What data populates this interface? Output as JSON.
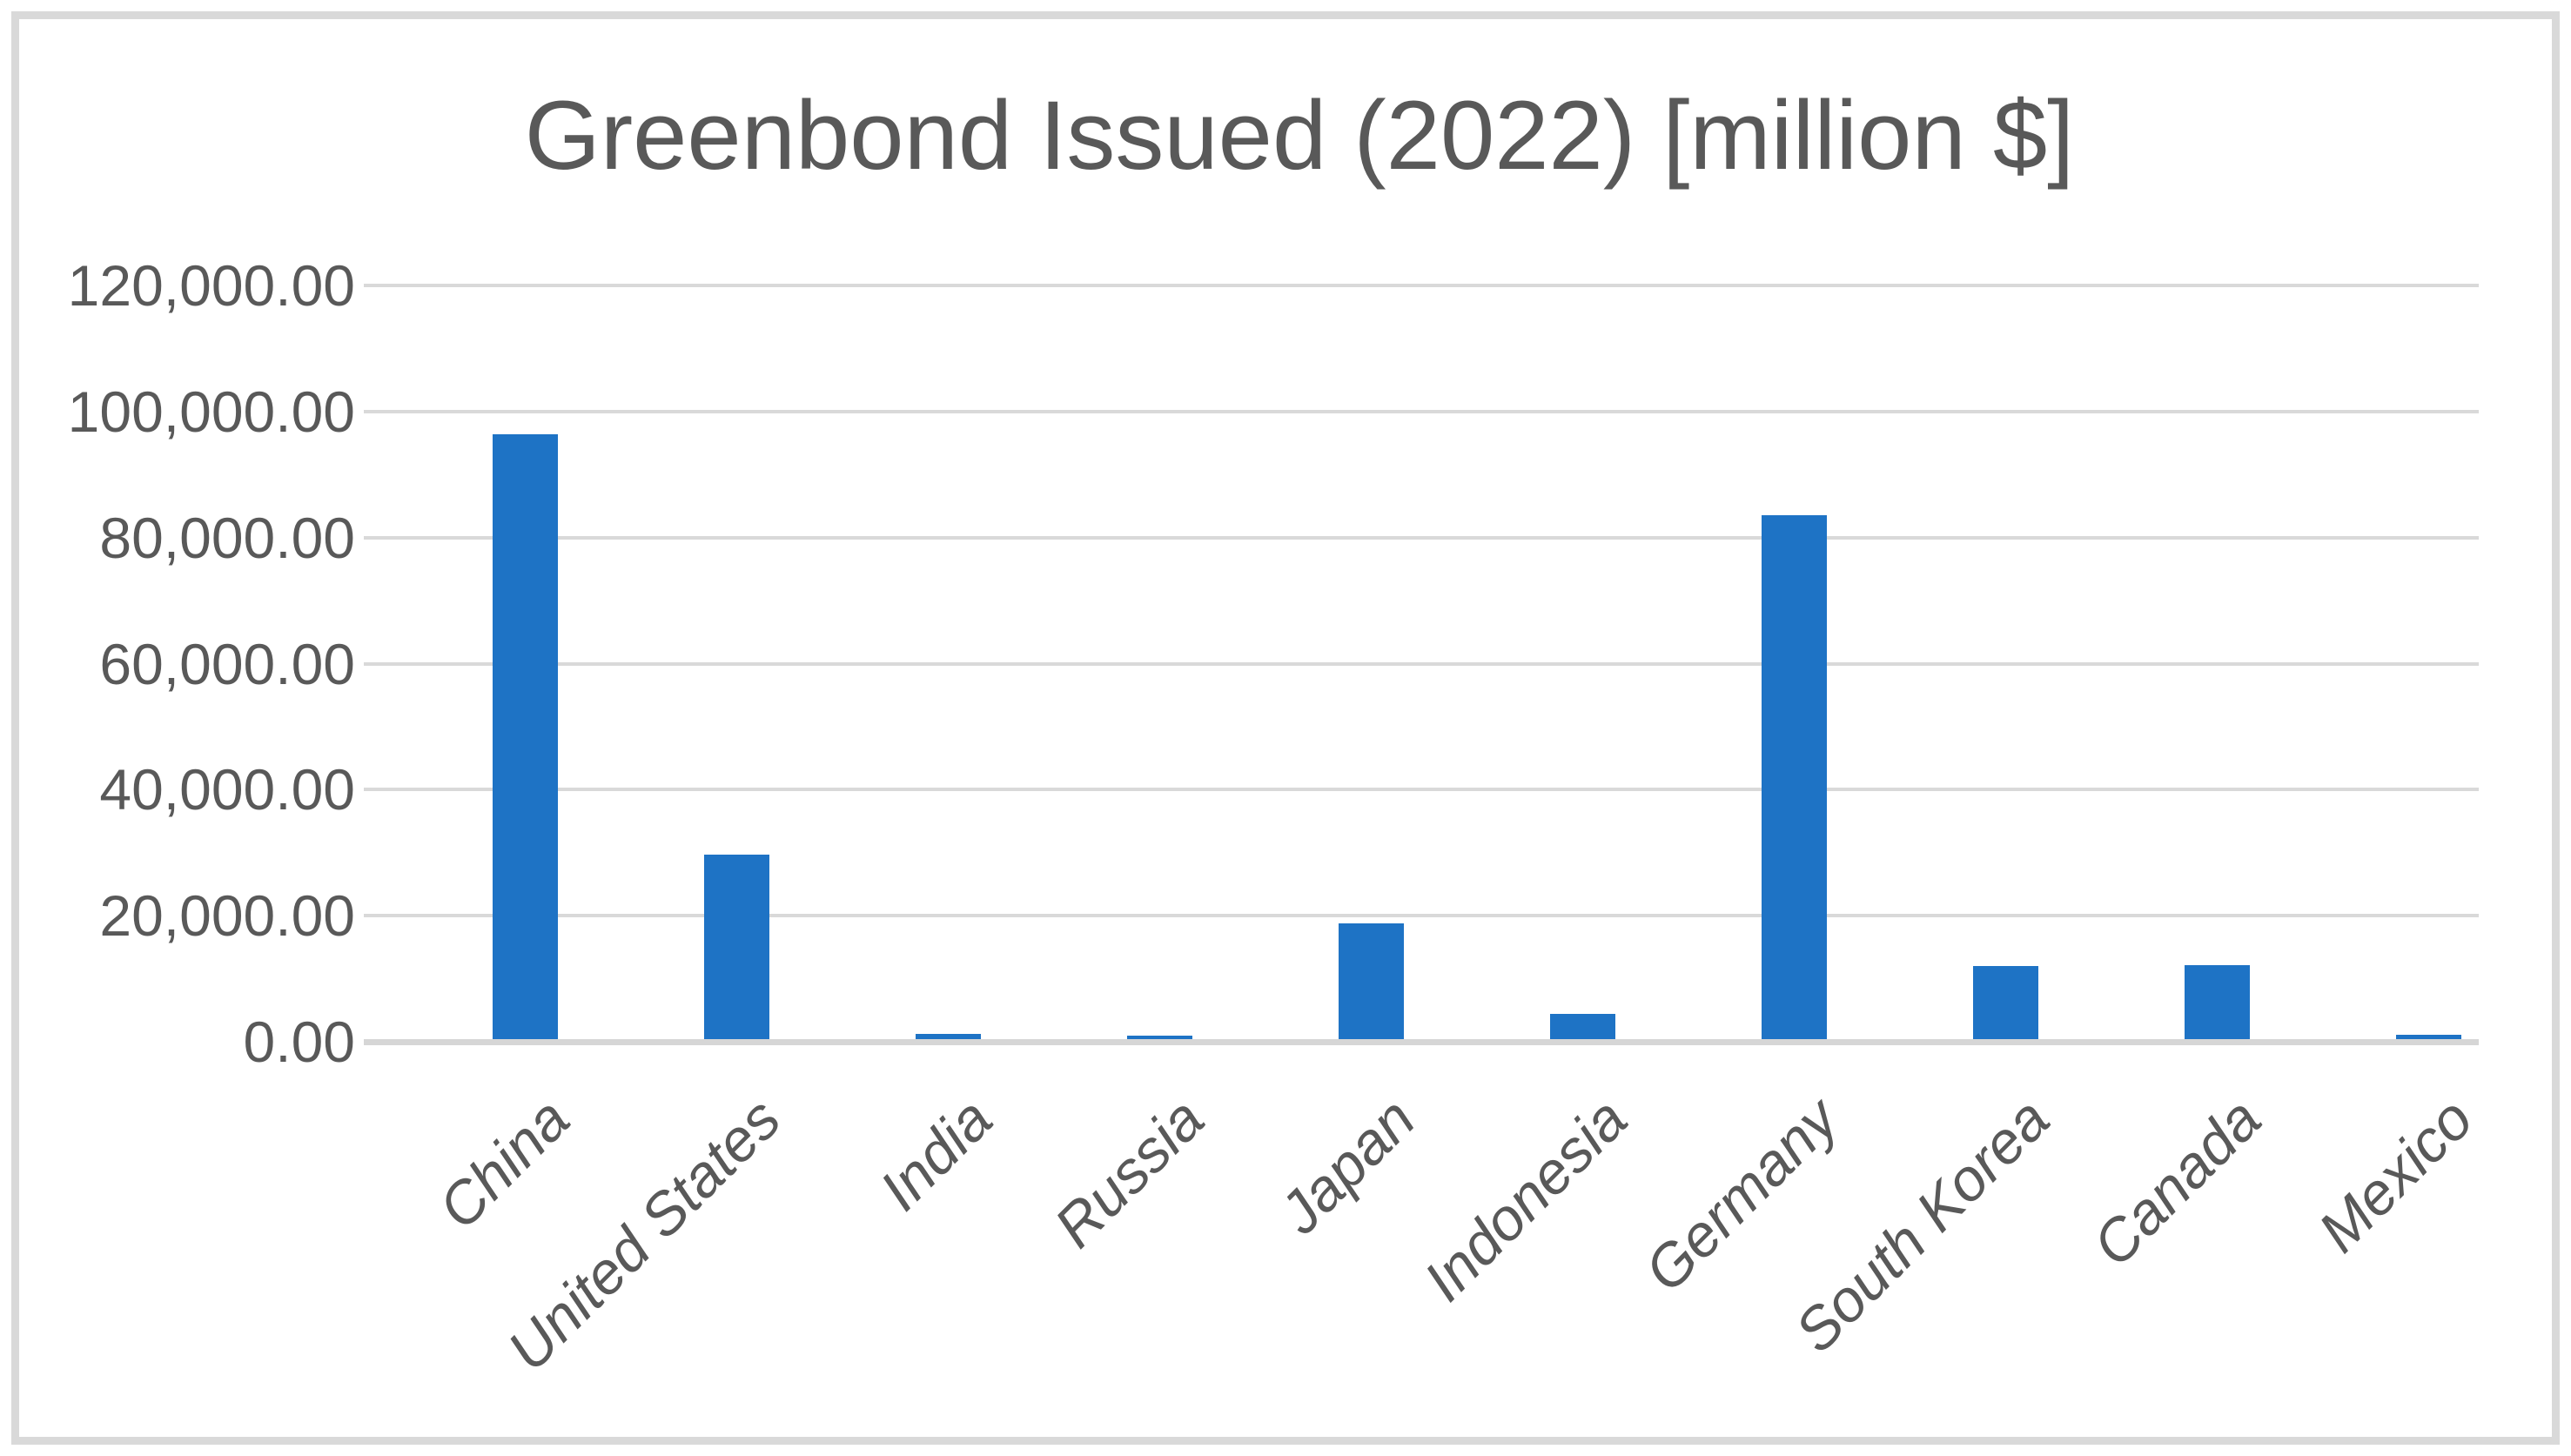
{
  "chart_data": {
    "type": "bar",
    "title": "Greenbond Issued (2022) [million $]",
    "categories": [
      "China",
      "United States",
      "India",
      "Russia",
      "Japan",
      "Indonesia",
      "Germany",
      "South Korea",
      "Canada",
      "Mexico"
    ],
    "values": [
      96400,
      29700,
      1200,
      1000,
      18800,
      4400,
      83600,
      12000,
      12200,
      1100
    ],
    "xlabel": "",
    "ylabel": "",
    "ylim": [
      0,
      120000
    ],
    "ytick_values": [
      0,
      20000,
      40000,
      60000,
      80000,
      100000,
      120000
    ],
    "ytick_labels": [
      "0.00",
      "20,000.00",
      "40,000.00",
      "60,000.00",
      "80,000.00",
      "100,000.00",
      "120,000.00"
    ],
    "grid": "horizontal",
    "legend_position": "none",
    "bar_color": "#1E73C5"
  },
  "colors": {
    "background": "#FFFFFF",
    "text": "#595959",
    "gridline": "#D9D9D9",
    "axis_line": "#D6D6D6",
    "frame_border": "#D9D9D9",
    "bar": "#1E73C5"
  }
}
